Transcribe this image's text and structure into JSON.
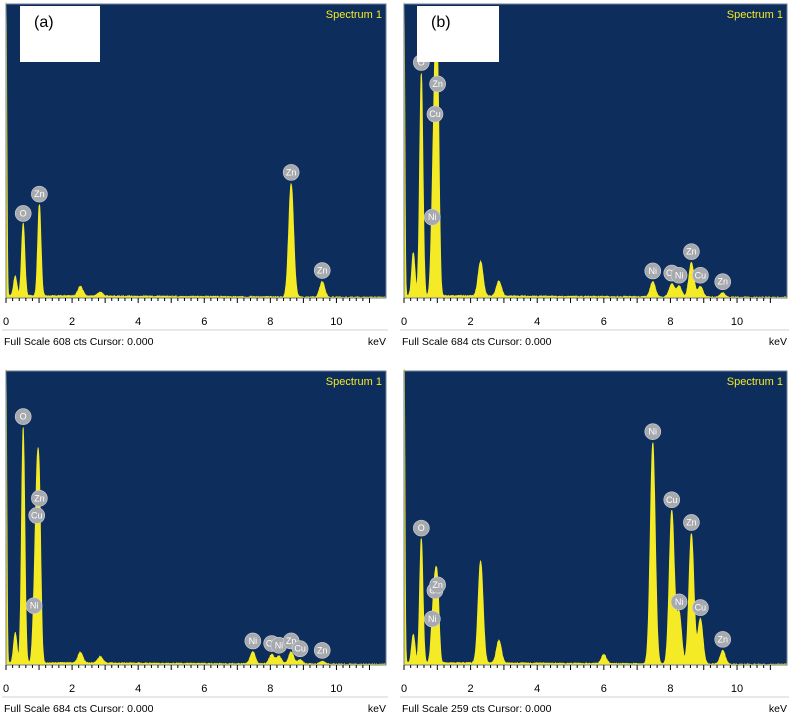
{
  "colors": {
    "plot_bg": "#0d2d5c",
    "spectrum": "#f5ea26",
    "badge": "#a6a9ae"
  },
  "chart_data": [
    {
      "type": "area",
      "panel_label": "(a)",
      "title": "Spectrum 1",
      "xlabel": "keV",
      "footer": "Full Scale 608 cts Cursor: 0.000",
      "xlim": [
        0,
        11.5
      ],
      "x_ticks": [
        0,
        2,
        4,
        6,
        8,
        10
      ],
      "ylim": [
        0,
        608
      ],
      "peaks": [
        {
          "element": "O",
          "x": 0.52,
          "y": 150
        },
        {
          "element": "Zn",
          "x": 1.01,
          "y": 190
        },
        {
          "element": "Zn",
          "x": 8.63,
          "y": 235
        },
        {
          "element": "Zn",
          "x": 9.57,
          "y": 32
        }
      ],
      "background_peaks": [
        {
          "x": 0.0,
          "y": 640
        },
        {
          "x": 0.28,
          "y": 40
        },
        {
          "x": 2.25,
          "y": 20
        },
        {
          "x": 2.85,
          "y": 8
        }
      ]
    },
    {
      "type": "area",
      "panel_label": "(b)",
      "title": "Spectrum 1",
      "xlabel": "keV",
      "footer": "Full Scale 684 cts Cursor: 0.000",
      "xlim": [
        0,
        11.5
      ],
      "x_ticks": [
        0,
        2,
        4,
        6,
        8,
        10
      ],
      "ylim": [
        0,
        684
      ],
      "peaks": [
        {
          "element": "O",
          "x": 0.52,
          "y": 520
        },
        {
          "element": "Zn",
          "x": 1.01,
          "y": 470
        },
        {
          "element": "Cu",
          "x": 0.93,
          "y": 400
        },
        {
          "element": "Ni",
          "x": 0.85,
          "y": 160
        },
        {
          "element": "Ni",
          "x": 7.47,
          "y": 35
        },
        {
          "element": "Cu",
          "x": 8.04,
          "y": 30
        },
        {
          "element": "Ni",
          "x": 8.26,
          "y": 25
        },
        {
          "element": "Zn",
          "x": 8.63,
          "y": 80
        },
        {
          "element": "Cu",
          "x": 8.9,
          "y": 25
        },
        {
          "element": "Zn",
          "x": 9.57,
          "y": 10
        }
      ],
      "background_peaks": [
        {
          "x": 0.0,
          "y": 700
        },
        {
          "x": 0.28,
          "y": 100
        },
        {
          "x": 2.3,
          "y": 80
        },
        {
          "x": 2.85,
          "y": 35
        }
      ]
    },
    {
      "type": "area",
      "panel_label": "",
      "title": "Spectrum 1",
      "xlabel": "keV",
      "footer": "Full Scale 684 cts Cursor: 0.000",
      "xlim": [
        0,
        11.5
      ],
      "x_ticks": [
        0,
        2,
        4,
        6,
        8,
        10
      ],
      "ylim": [
        0,
        684
      ],
      "peaks": [
        {
          "element": "O",
          "x": 0.52,
          "y": 550
        },
        {
          "element": "Zn",
          "x": 1.01,
          "y": 360
        },
        {
          "element": "Cu",
          "x": 0.93,
          "y": 320
        },
        {
          "element": "Ni",
          "x": 0.85,
          "y": 110
        },
        {
          "element": "Ni",
          "x": 7.47,
          "y": 28
        },
        {
          "element": "Cu",
          "x": 8.04,
          "y": 22
        },
        {
          "element": "Ni",
          "x": 8.26,
          "y": 18
        },
        {
          "element": "Zn",
          "x": 8.63,
          "y": 28
        },
        {
          "element": "Cu",
          "x": 8.9,
          "y": 10
        },
        {
          "element": "Zn",
          "x": 9.57,
          "y": 6
        }
      ],
      "background_peaks": [
        {
          "x": 0.0,
          "y": 700
        },
        {
          "x": 0.28,
          "y": 70
        },
        {
          "x": 2.25,
          "y": 25
        },
        {
          "x": 2.85,
          "y": 15
        }
      ]
    },
    {
      "type": "area",
      "panel_label": "",
      "title": "Spectrum 1",
      "xlabel": "keV",
      "footer": "Full Scale 259 cts Cursor: 0.000",
      "xlim": [
        0,
        11.5
      ],
      "x_ticks": [
        0,
        2,
        4,
        6,
        8,
        10
      ],
      "ylim": [
        0,
        259
      ],
      "peaks": [
        {
          "element": "O",
          "x": 0.52,
          "y": 110
        },
        {
          "element": "Cu",
          "x": 0.93,
          "y": 55
        },
        {
          "element": "Zn",
          "x": 1.01,
          "y": 60
        },
        {
          "element": "Ni",
          "x": 0.85,
          "y": 30
        },
        {
          "element": "Ni",
          "x": 7.47,
          "y": 195
        },
        {
          "element": "Cu",
          "x": 8.04,
          "y": 135
        },
        {
          "element": "Ni",
          "x": 8.26,
          "y": 45
        },
        {
          "element": "Zn",
          "x": 8.63,
          "y": 115
        },
        {
          "element": "Cu",
          "x": 8.9,
          "y": 40
        },
        {
          "element": "Zn",
          "x": 9.57,
          "y": 12
        }
      ],
      "background_peaks": [
        {
          "x": 0.0,
          "y": 300
        },
        {
          "x": 0.28,
          "y": 25
        },
        {
          "x": 2.3,
          "y": 90
        },
        {
          "x": 2.85,
          "y": 20
        },
        {
          "x": 6.0,
          "y": 8
        }
      ]
    }
  ]
}
